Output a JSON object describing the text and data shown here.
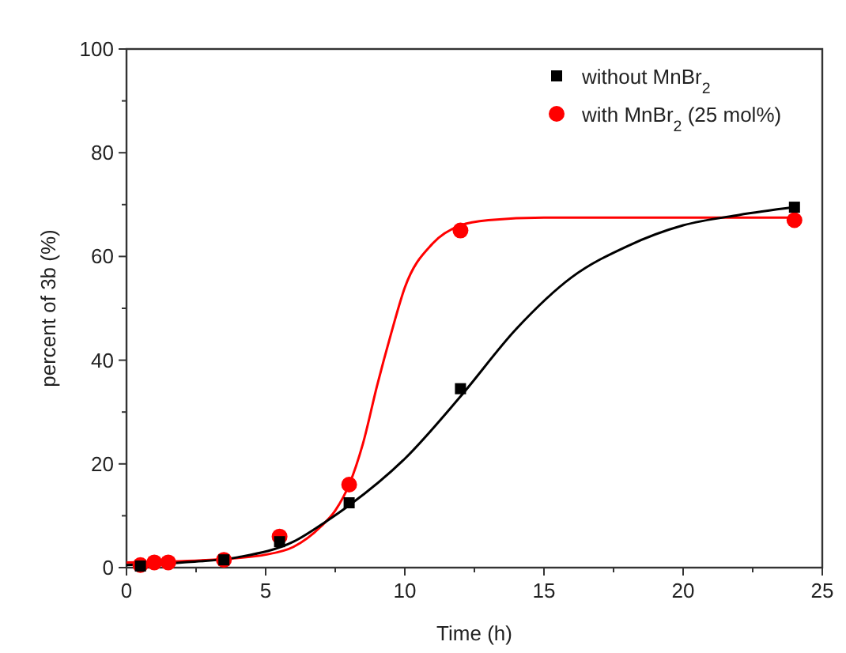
{
  "chart_data": {
    "type": "scatter",
    "xlabel": "Time (h)",
    "ylabel": "percent of 3b (%)",
    "xlim": [
      0,
      25
    ],
    "ylim": [
      0,
      100
    ],
    "xticks": [
      0,
      {
        "value": 2.5,
        "label": null
      },
      5,
      {
        "value": 7.5,
        "label": null
      },
      10,
      {
        "value": 12.5,
        "label": null
      },
      15,
      {
        "value": 17.5,
        "label": null
      },
      20,
      {
        "value": 22.5,
        "label": null
      },
      25
    ],
    "yticks": [
      0,
      {
        "value": 10,
        "label": null
      },
      20,
      {
        "value": 30,
        "label": null
      },
      40,
      {
        "value": 50,
        "label": null
      },
      60,
      {
        "value": 70,
        "label": null
      },
      80,
      {
        "value": 90,
        "label": null
      },
      100
    ],
    "legend": "top right",
    "grid": false,
    "series": [
      {
        "name": "without MnBr$_{2}$",
        "marker": "square",
        "color": "#000000",
        "x": [
          0.5,
          3.5,
          5.5,
          8,
          12,
          24
        ],
        "values": [
          0.3,
          1.5,
          5,
          12.5,
          34.5,
          69.5
        ]
      },
      {
        "name": "with MnBr$_{2}$ (25 mol%)",
        "marker": "circle",
        "color": "#ff0000",
        "x": [
          0.5,
          1,
          1.5,
          3.5,
          5.5,
          8,
          12,
          24
        ],
        "values": [
          0.5,
          1,
          1,
          1.5,
          6,
          16,
          65,
          67
        ]
      },
      {
        "type": "line",
        "color": "#000000",
        "x": [
          0,
          2,
          4,
          6,
          7.2,
          8,
          10,
          12,
          14,
          16,
          18,
          20,
          22,
          24
        ],
        "values": [
          0.5,
          1,
          2,
          5,
          9,
          12,
          21,
          33,
          46,
          56,
          62,
          66,
          68,
          69.5
        ]
      },
      {
        "type": "line",
        "color": "#ff0000",
        "x": [
          0,
          3,
          5,
          6,
          7,
          7.5,
          8,
          8.5,
          9,
          9.5,
          10,
          11,
          12,
          13,
          15,
          24
        ],
        "values": [
          1,
          1.5,
          2.5,
          4,
          8,
          11,
          16,
          24,
          35,
          45,
          54,
          62.5,
          66,
          67,
          67.5,
          67.5
        ]
      }
    ]
  }
}
